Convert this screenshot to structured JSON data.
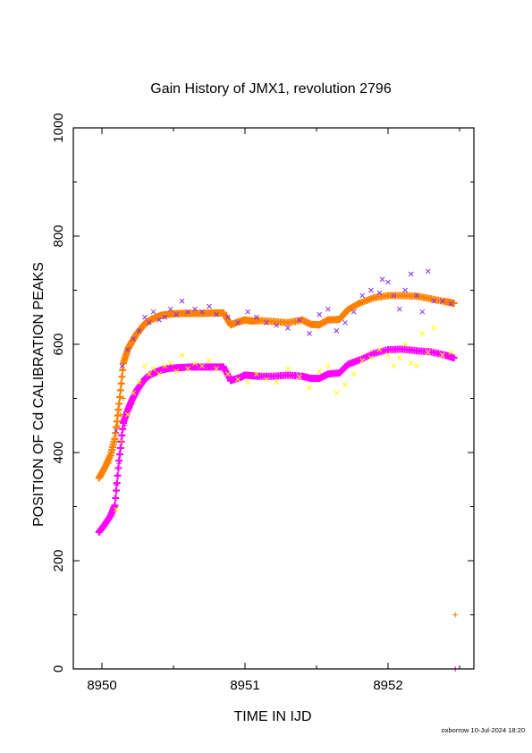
{
  "chart_data": {
    "type": "scatter",
    "title": "Gain History of JMX1, revolution 2796",
    "xlabel": "TIME IN IJD",
    "ylabel": "POSITION OF Cd CALIBRATION PEAKS",
    "xlim": [
      8949.8,
      8952.6
    ],
    "ylim": [
      0,
      1000
    ],
    "xticks": [
      "8950",
      "8951",
      "8952"
    ],
    "yticks": [
      "0",
      "200",
      "400",
      "600",
      "800",
      "1000"
    ],
    "grid": false,
    "footer": "oxborrow 10-Jul-2024 18:20",
    "series": [
      {
        "color": "#ff8000",
        "marker": "plus-thick",
        "x": [
          8949.98,
          8950.02,
          8950.06,
          8950.09,
          8950.12,
          8950.15,
          8950.18,
          8950.21,
          8950.24,
          8950.27,
          8950.3,
          8950.34,
          8950.38,
          8950.42,
          8950.48,
          8950.55,
          8950.62,
          8950.7,
          8950.78,
          8950.85,
          8950.9,
          8950.96,
          8951.0,
          8951.05,
          8951.1,
          8951.2,
          8951.3,
          8951.4,
          8951.46,
          8951.52,
          8951.58,
          8951.66,
          8951.72,
          8951.8,
          8951.9,
          8952.0,
          8952.1,
          8952.2,
          8952.3,
          8952.4,
          8952.46
        ],
        "y": [
          353,
          372,
          395,
          425,
          490,
          565,
          590,
          605,
          618,
          628,
          638,
          645,
          650,
          654,
          656,
          657,
          657,
          657,
          658,
          658,
          636,
          642,
          645,
          643,
          644,
          642,
          640,
          645,
          637,
          636,
          645,
          646,
          664,
          676,
          686,
          690,
          690,
          689,
          684,
          679,
          676
        ]
      },
      {
        "color": "#ff00ff",
        "marker": "plus-thick",
        "x": [
          8949.98,
          8950.02,
          8950.06,
          8950.09,
          8950.12,
          8950.15,
          8950.18,
          8950.21,
          8950.24,
          8950.27,
          8950.3,
          8950.34,
          8950.38,
          8950.42,
          8950.48,
          8950.55,
          8950.62,
          8950.7,
          8950.78,
          8950.85,
          8950.9,
          8950.96,
          8951.0,
          8951.05,
          8951.1,
          8951.2,
          8951.3,
          8951.4,
          8951.46,
          8951.52,
          8951.58,
          8951.66,
          8951.72,
          8951.8,
          8951.9,
          8952.0,
          8952.1,
          8952.2,
          8952.3,
          8952.4,
          8952.46
        ],
        "y": [
          253,
          267,
          283,
          302,
          385,
          455,
          478,
          497,
          513,
          525,
          536,
          544,
          549,
          553,
          556,
          557,
          558,
          558,
          558,
          558,
          533,
          538,
          543,
          542,
          541,
          541,
          543,
          541,
          537,
          537,
          545,
          547,
          563,
          571,
          583,
          590,
          591,
          588,
          586,
          580,
          575
        ]
      },
      {
        "color": "#8a2be2",
        "marker": "cross",
        "x": [
          8950.1,
          8950.14,
          8950.18,
          8950.22,
          8950.26,
          8950.3,
          8950.33,
          8950.36,
          8950.4,
          8950.44,
          8950.48,
          8950.52,
          8950.56,
          8950.6,
          8950.65,
          8950.7,
          8950.75,
          8950.8,
          8950.88,
          8950.95,
          8951.02,
          8951.08,
          8951.15,
          8951.22,
          8951.3,
          8951.38,
          8951.45,
          8951.52,
          8951.58,
          8951.64,
          8951.7,
          8951.76,
          8951.82,
          8951.88,
          8951.94,
          8951.96,
          8952.0,
          8952.04,
          8952.08,
          8952.12,
          8952.16,
          8952.2,
          8952.24,
          8952.28,
          8952.32,
          8952.38,
          8952.44
        ],
        "y": [
          440,
          560,
          590,
          610,
          625,
          650,
          640,
          660,
          645,
          650,
          665,
          655,
          680,
          660,
          665,
          660,
          670,
          655,
          650,
          640,
          660,
          650,
          640,
          635,
          630,
          645,
          620,
          655,
          665,
          625,
          640,
          660,
          690,
          700,
          695,
          720,
          715,
          690,
          665,
          700,
          730,
          690,
          660,
          735,
          680,
          680,
          675
        ]
      },
      {
        "color": "#ffff00",
        "marker": "cross",
        "x": [
          8950.1,
          8950.14,
          8950.18,
          8950.22,
          8950.26,
          8950.3,
          8950.33,
          8950.36,
          8950.4,
          8950.44,
          8950.48,
          8950.52,
          8950.56,
          8950.6,
          8950.65,
          8950.7,
          8950.75,
          8950.8,
          8950.88,
          8950.95,
          8951.02,
          8951.08,
          8951.15,
          8951.22,
          8951.3,
          8951.38,
          8951.45,
          8951.52,
          8951.58,
          8951.64,
          8951.7,
          8951.76,
          8951.82,
          8951.88,
          8951.94,
          8952.0,
          8952.04,
          8952.08,
          8952.12,
          8952.16,
          8952.2,
          8952.24,
          8952.28,
          8952.32,
          8952.38,
          8952.44
        ],
        "y": [
          295,
          420,
          470,
          510,
          530,
          560,
          545,
          555,
          545,
          560,
          565,
          550,
          580,
          555,
          565,
          560,
          570,
          555,
          545,
          535,
          530,
          545,
          535,
          530,
          555,
          540,
          520,
          550,
          560,
          510,
          525,
          545,
          570,
          575,
          590,
          580,
          560,
          575,
          600,
          565,
          560,
          620,
          585,
          630,
          580,
          585
        ]
      },
      {
        "color": "#ff8000",
        "marker": "plus-thin",
        "x": [
          8950.05,
          8950.07,
          8950.09,
          8950.11,
          8950.13,
          8950.15,
          8952.47
        ],
        "y": [
          380,
          405,
          430,
          450,
          470,
          500,
          100
        ]
      },
      {
        "color": "#ff00ff",
        "marker": "plus-thin",
        "x": [
          8950.08,
          8950.1,
          8950.12,
          8950.14,
          8950.16,
          8952.47
        ],
        "y": [
          300,
          340,
          380,
          420,
          450,
          0
        ]
      }
    ]
  }
}
